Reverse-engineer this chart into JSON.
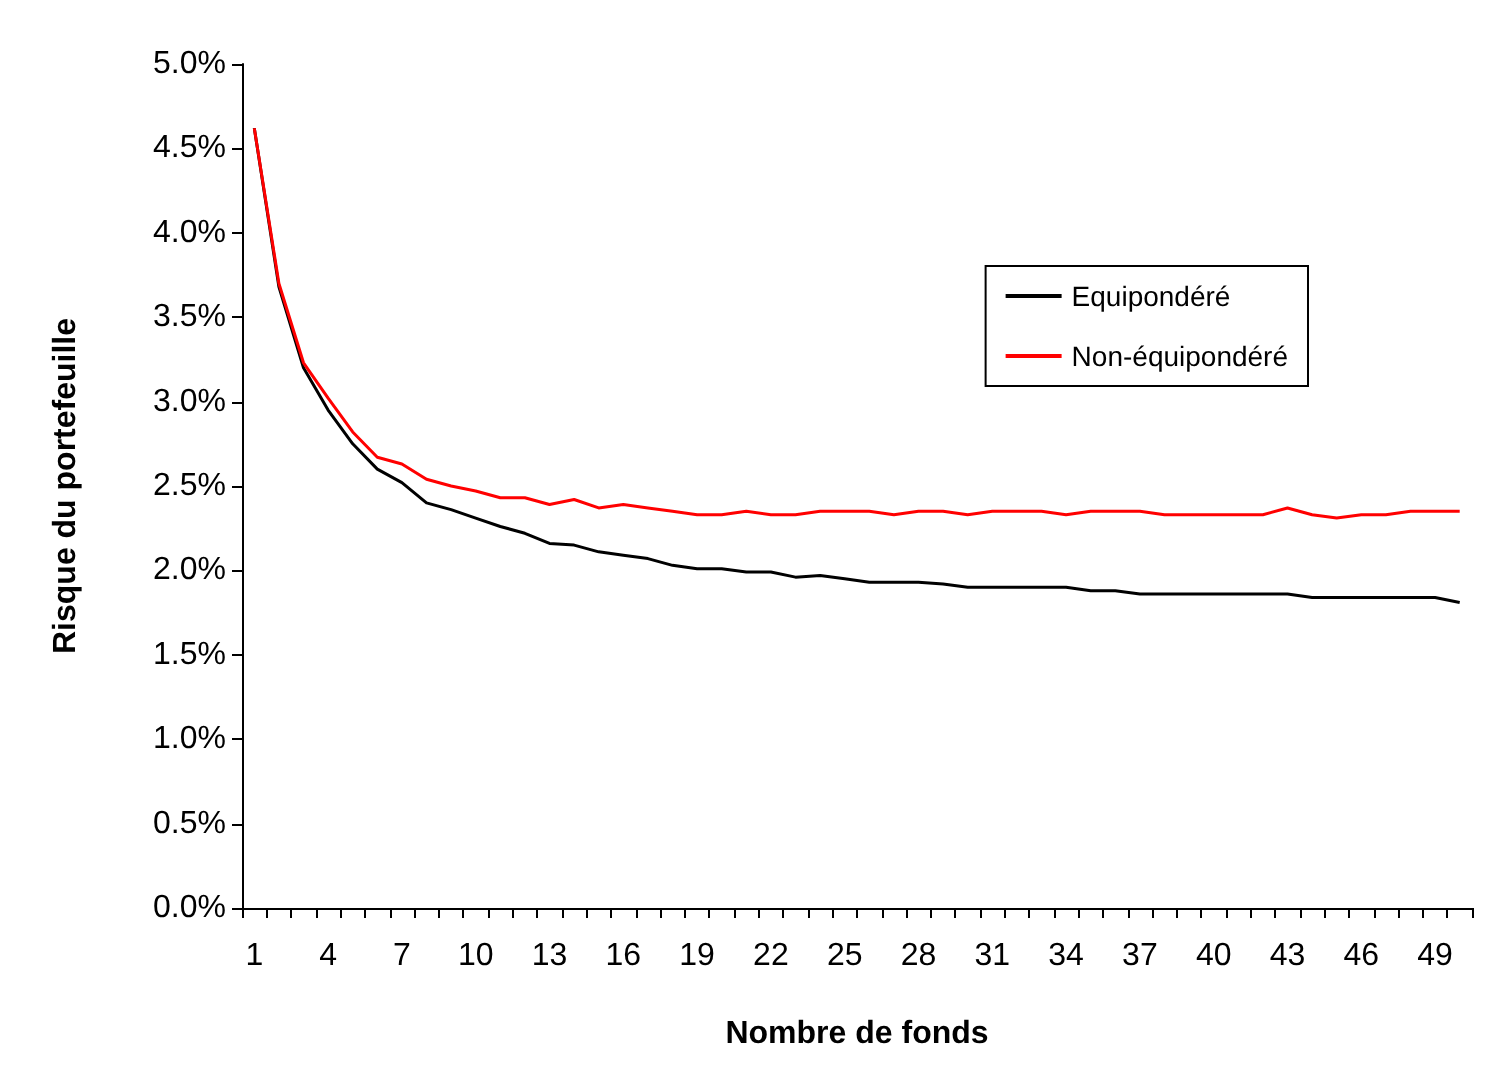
{
  "chart_data": {
    "type": "line",
    "xlabel": "Nombre de fonds",
    "ylabel": "Risque du portefeuille",
    "categories": [
      "1",
      null,
      null,
      "4",
      null,
      null,
      "7",
      null,
      null,
      "10",
      null,
      null,
      "13",
      null,
      null,
      "16",
      null,
      null,
      "19",
      null,
      null,
      "22",
      null,
      null,
      "25",
      null,
      null,
      "28",
      null,
      null,
      "31",
      null,
      null,
      "34",
      null,
      null,
      "37",
      null,
      null,
      "40",
      null,
      null,
      "43",
      null,
      null,
      "46",
      null,
      null,
      "49",
      null
    ],
    "series": [
      {
        "name": "Equipondéré",
        "color": "#000000",
        "values": [
          4.62,
          3.68,
          3.2,
          2.95,
          2.75,
          2.6,
          2.52,
          2.4,
          2.36,
          2.31,
          2.26,
          2.22,
          2.16,
          2.15,
          2.11,
          2.09,
          2.07,
          2.03,
          2.01,
          2.01,
          1.99,
          1.99,
          1.96,
          1.97,
          1.95,
          1.93,
          1.93,
          1.93,
          1.92,
          1.9,
          1.9,
          1.9,
          1.9,
          1.9,
          1.88,
          1.88,
          1.86,
          1.86,
          1.86,
          1.86,
          1.86,
          1.86,
          1.86,
          1.84,
          1.84,
          1.84,
          1.84,
          1.84,
          1.84,
          1.81
        ]
      },
      {
        "name": "Non-équipondéré",
        "color": "#ff0000",
        "values": [
          4.62,
          3.7,
          3.23,
          3.02,
          2.82,
          2.67,
          2.63,
          2.54,
          2.5,
          2.47,
          2.43,
          2.43,
          2.39,
          2.42,
          2.37,
          2.39,
          2.37,
          2.35,
          2.33,
          2.33,
          2.35,
          2.33,
          2.33,
          2.35,
          2.35,
          2.35,
          2.33,
          2.35,
          2.35,
          2.33,
          2.35,
          2.35,
          2.35,
          2.33,
          2.35,
          2.35,
          2.35,
          2.33,
          2.33,
          2.33,
          2.33,
          2.33,
          2.37,
          2.33,
          2.31,
          2.33,
          2.33,
          2.35,
          2.35,
          2.35
        ]
      }
    ],
    "ylim": [
      0,
      5
    ],
    "yticks": [
      {
        "value": 0,
        "label": "0.0%"
      },
      {
        "value": 0.5,
        "label": "0.5%"
      },
      {
        "value": 1,
        "label": "1.0%"
      },
      {
        "value": 1.5,
        "label": "1.5%"
      },
      {
        "value": 2,
        "label": "2.0%"
      },
      {
        "value": 2.5,
        "label": "2.5%"
      },
      {
        "value": 3,
        "label": "3.0%"
      },
      {
        "value": 3.5,
        "label": "3.5%"
      },
      {
        "value": 4,
        "label": "4.0%"
      },
      {
        "value": 4.5,
        "label": "4.5%"
      },
      {
        "value": 5,
        "label": "5.0%"
      }
    ],
    "legend": "right",
    "grid": false,
    "marker": "none",
    "line_style": "solid"
  }
}
